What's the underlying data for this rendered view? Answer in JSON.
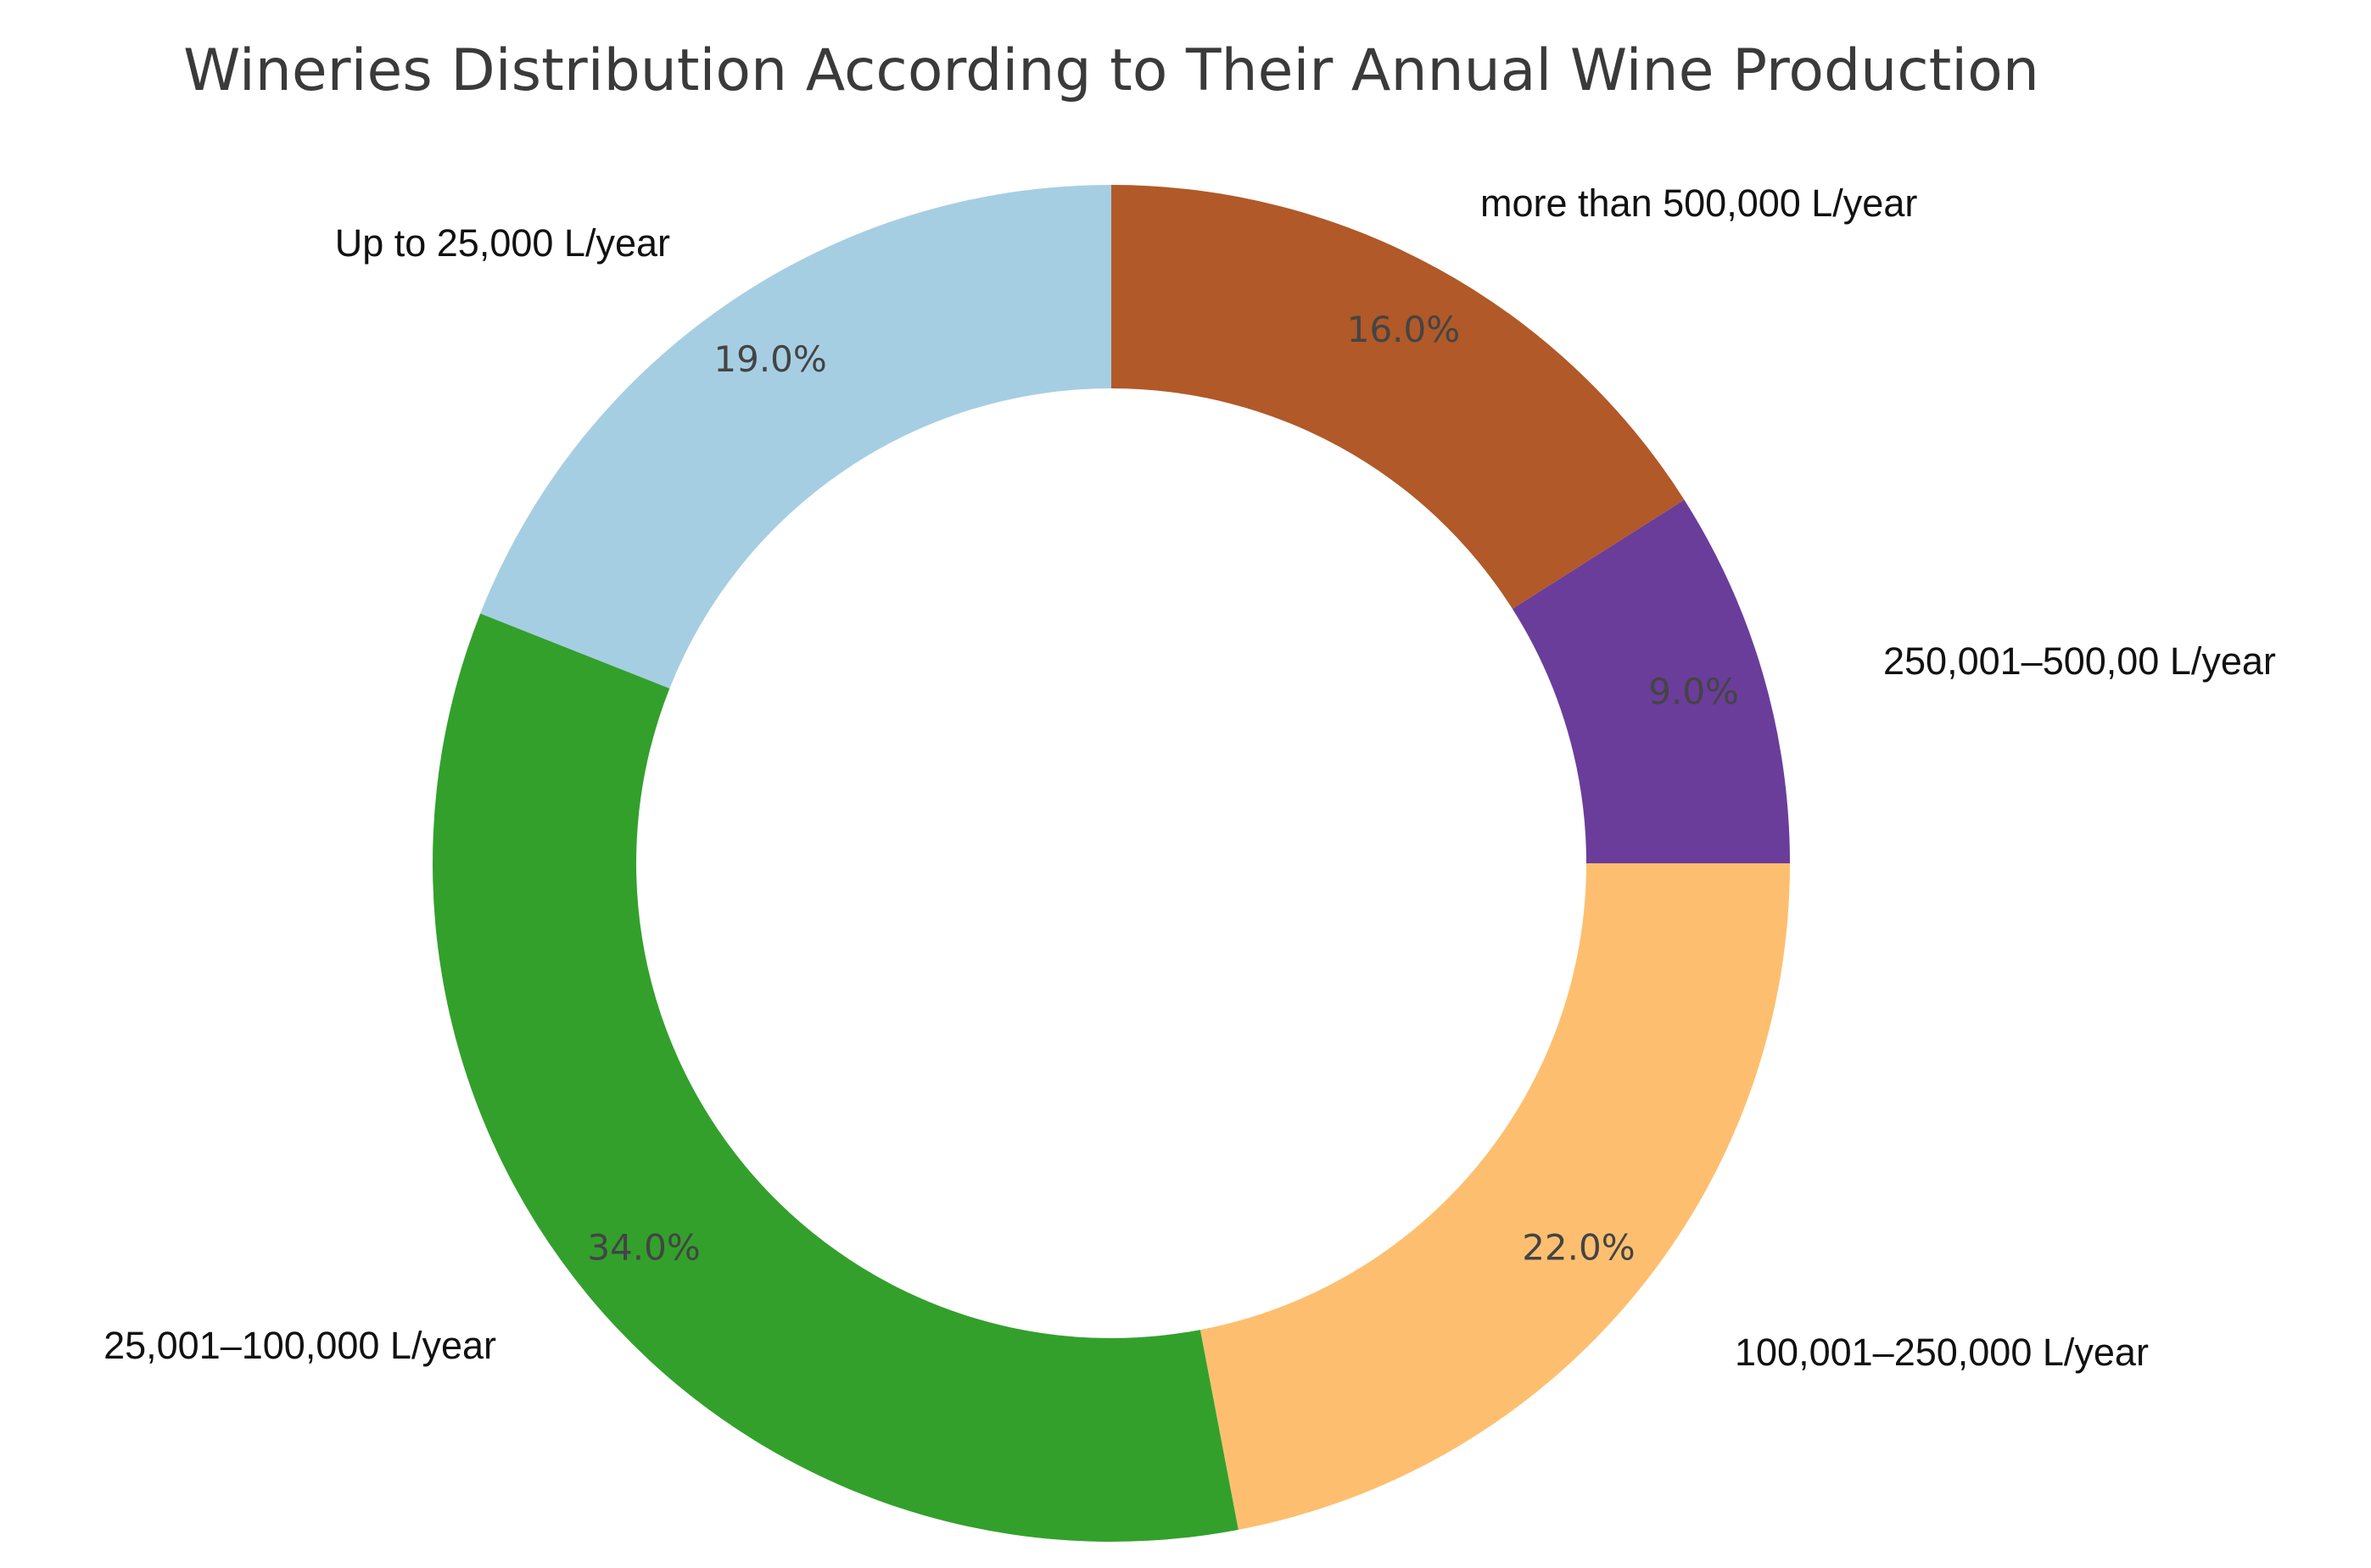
{
  "chart_data": {
    "type": "pie",
    "donut": true,
    "title": "Wineries Distribution According to Their Annual Wine Production",
    "start_angle_deg": 90,
    "direction": "counterclockwise",
    "slices": [
      {
        "label": "Up to 25,000 L/year",
        "value": 19.0,
        "pct_label": "19.0%",
        "color": "#a6cee3"
      },
      {
        "label": "25,001–100,000 L/year",
        "value": 34.0,
        "pct_label": "34.0%",
        "color": "#33a02c"
      },
      {
        "label": "100,001–250,000 L/year",
        "value": 22.0,
        "pct_label": "22.0%",
        "color": "#fdbf6f"
      },
      {
        "label": "250,001–500,00 L/year",
        "value": 9.0,
        "pct_label": "9.0%",
        "color": "#6a3d9a"
      },
      {
        "label": "more than 500,000 L/year",
        "value": 16.0,
        "pct_label": "16.0%",
        "color": "#b15928"
      }
    ]
  }
}
